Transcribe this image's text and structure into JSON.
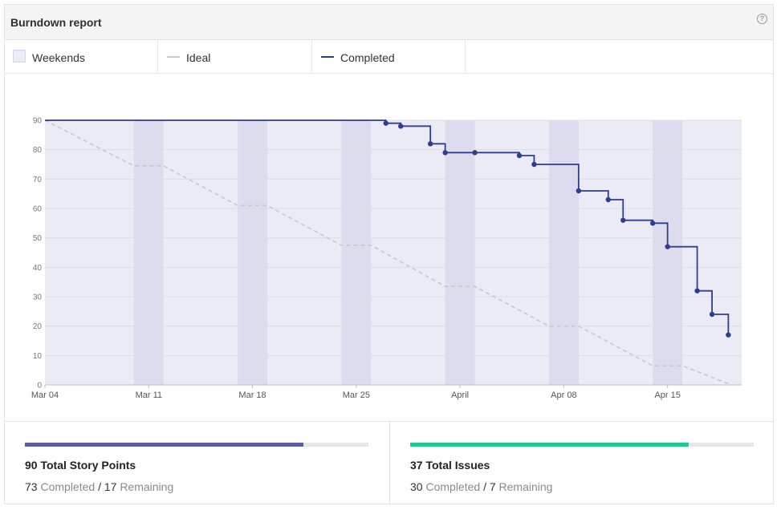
{
  "header": {
    "title": "Burndown report",
    "help_icon": "help-circle-icon",
    "help_glyph": "?"
  },
  "legend": {
    "weekends_label": "Weekends",
    "ideal_label": "Ideal",
    "completed_label": "Completed"
  },
  "colors": {
    "completed": "#2f3d8f",
    "ideal": "#c8c8c8",
    "weekend": "#dcdcee",
    "plot_bg": "#ebebf6",
    "points_bar": "#5b5ea6",
    "issues_bar": "#1ec994"
  },
  "chart_data": {
    "type": "line",
    "title": "Burndown report",
    "xlabel": "",
    "ylabel": "",
    "ylim": [
      0,
      90
    ],
    "yticks": [
      0,
      10,
      20,
      30,
      40,
      50,
      60,
      70,
      80,
      90
    ],
    "xlim": [
      0,
      47
    ],
    "xtick_labels": [
      {
        "x": 0,
        "label": "Mar 04"
      },
      {
        "x": 7,
        "label": "Mar 11"
      },
      {
        "x": 14,
        "label": "Mar 18"
      },
      {
        "x": 21,
        "label": "Mar 25"
      },
      {
        "x": 28,
        "label": "April"
      },
      {
        "x": 35,
        "label": "Apr 08"
      },
      {
        "x": 42,
        "label": "Apr 15"
      }
    ],
    "weekends": [
      [
        6,
        8
      ],
      [
        13,
        15
      ],
      [
        20,
        22
      ],
      [
        27,
        29
      ],
      [
        34,
        36
      ],
      [
        41,
        43
      ]
    ],
    "series": [
      {
        "name": "Ideal",
        "style": "dashed",
        "x": [
          0,
          6,
          8,
          13,
          15,
          20,
          22,
          27,
          29,
          34,
          36,
          41,
          43,
          46.3
        ],
        "values": [
          90,
          74.5,
          74.5,
          61,
          61,
          47.5,
          47.5,
          33.5,
          33.5,
          20,
          20,
          6.5,
          6.5,
          0
        ]
      },
      {
        "name": "Completed",
        "style": "step",
        "x": [
          0,
          23,
          24,
          26,
          27,
          29,
          32,
          33,
          36,
          38,
          39,
          41,
          42,
          44,
          45,
          46.1
        ],
        "values": [
          90,
          89,
          88,
          82,
          79,
          79,
          78,
          75,
          66,
          63,
          56,
          55,
          47,
          32,
          24,
          17
        ],
        "markers_from_index": 1
      }
    ]
  },
  "stats": {
    "points": {
      "title": "90 Total Story Points",
      "completed": "73",
      "completed_label": "Completed",
      "separator": "/",
      "remaining": "17",
      "remaining_label": "Remaining",
      "progress": 0.811
    },
    "issues": {
      "title": "37 Total Issues",
      "completed": "30",
      "completed_label": "Completed",
      "separator": "/",
      "remaining": "7",
      "remaining_label": "Remaining",
      "progress": 0.811
    }
  }
}
